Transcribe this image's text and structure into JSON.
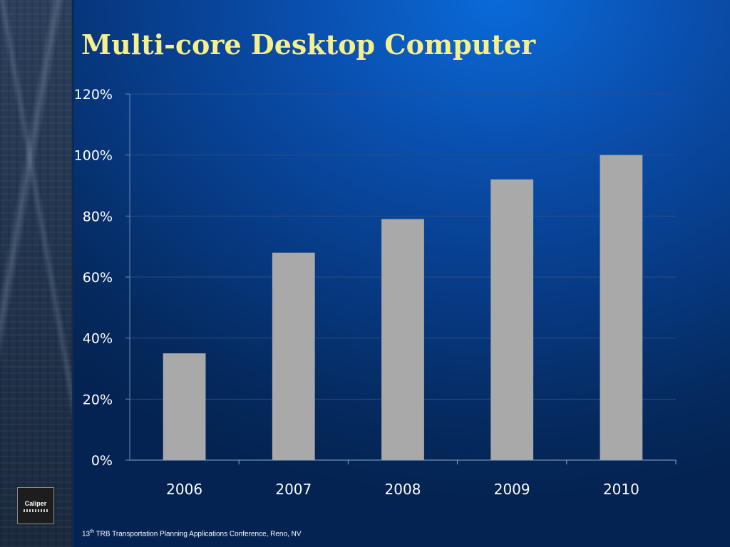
{
  "slide": {
    "title": "Multi-core Desktop Computer",
    "footer": {
      "number": "13",
      "superscript": "th",
      "text": " TRB Transportation Planning Applications Conference, Reno, NV"
    },
    "logo_text": "Caliper"
  },
  "colors": {
    "title": "#f6f08a",
    "bar": "#a9a9a9",
    "grid": "#2a4f86"
  },
  "chart_data": {
    "type": "bar",
    "title": "",
    "xlabel": "",
    "ylabel": "",
    "categories": [
      "2006",
      "2007",
      "2008",
      "2009",
      "2010"
    ],
    "values": [
      35,
      68,
      79,
      92,
      100
    ],
    "ylim": [
      0,
      120
    ],
    "yticks": [
      0,
      20,
      40,
      60,
      80,
      100,
      120
    ],
    "ytick_labels": [
      "0%",
      "20%",
      "40%",
      "60%",
      "80%",
      "100%",
      "120%"
    ],
    "grid": true,
    "legend": "none"
  }
}
